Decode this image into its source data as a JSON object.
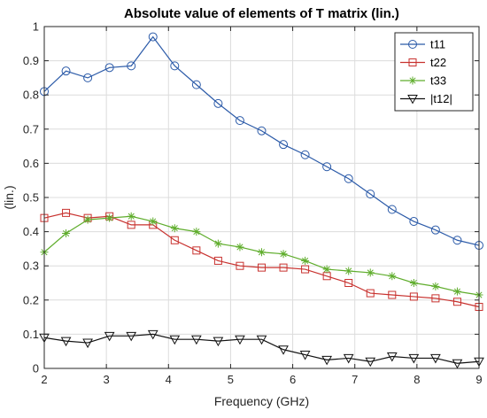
{
  "chart_data": {
    "type": "line",
    "title": "Absolute value of elements of T matrix (lin.)",
    "xlabel": "Frequency (GHz)",
    "ylabel": "(lin.)",
    "xlim": [
      2,
      9
    ],
    "ylim": [
      0,
      1
    ],
    "xticks": [
      2,
      3,
      4,
      5,
      6,
      7,
      8,
      9
    ],
    "yticks": [
      0,
      0.1,
      0.2,
      0.3,
      0.4,
      0.5,
      0.6,
      0.7,
      0.8,
      0.9,
      1
    ],
    "xtick_labels": [
      "2",
      "3",
      "4",
      "5",
      "6",
      "7",
      "8",
      "9"
    ],
    "ytick_labels": [
      "0",
      "0.1",
      "0.2",
      "0.3",
      "0.4",
      "0.5",
      "0.6",
      "0.7",
      "0.8",
      "0.9",
      "1"
    ],
    "grid": true,
    "legend_position": "top-right",
    "x": [
      2.0,
      2.35,
      2.7,
      3.05,
      3.4,
      3.75,
      4.1,
      4.45,
      4.8,
      5.15,
      5.5,
      5.85,
      6.2,
      6.55,
      6.9,
      7.25,
      7.6,
      7.95,
      8.3,
      8.65,
      9.0
    ],
    "series": [
      {
        "name": "t11",
        "color": "#2b5aa8",
        "marker": "circle",
        "values": [
          0.81,
          0.87,
          0.85,
          0.88,
          0.885,
          0.97,
          0.885,
          0.83,
          0.775,
          0.725,
          0.695,
          0.655,
          0.625,
          0.59,
          0.555,
          0.51,
          0.465,
          0.43,
          0.405,
          0.375,
          0.36
        ]
      },
      {
        "name": "t22",
        "color": "#c8322f",
        "marker": "square",
        "values": [
          0.44,
          0.455,
          0.44,
          0.445,
          0.42,
          0.42,
          0.375,
          0.345,
          0.315,
          0.3,
          0.295,
          0.295,
          0.29,
          0.27,
          0.25,
          0.22,
          0.215,
          0.21,
          0.205,
          0.195,
          0.18
        ]
      },
      {
        "name": "t33",
        "color": "#5fad2c",
        "marker": "asterisk",
        "values": [
          0.34,
          0.395,
          0.435,
          0.44,
          0.445,
          0.43,
          0.41,
          0.4,
          0.365,
          0.355,
          0.34,
          0.335,
          0.315,
          0.29,
          0.285,
          0.28,
          0.27,
          0.25,
          0.24,
          0.225,
          0.215
        ]
      },
      {
        "name": "|t12|",
        "color": "#111111",
        "marker": "triangle-down",
        "values": [
          0.09,
          0.08,
          0.075,
          0.095,
          0.095,
          0.1,
          0.085,
          0.085,
          0.08,
          0.085,
          0.085,
          0.055,
          0.04,
          0.025,
          0.03,
          0.02,
          0.035,
          0.03,
          0.03,
          0.015,
          0.02
        ]
      }
    ]
  }
}
